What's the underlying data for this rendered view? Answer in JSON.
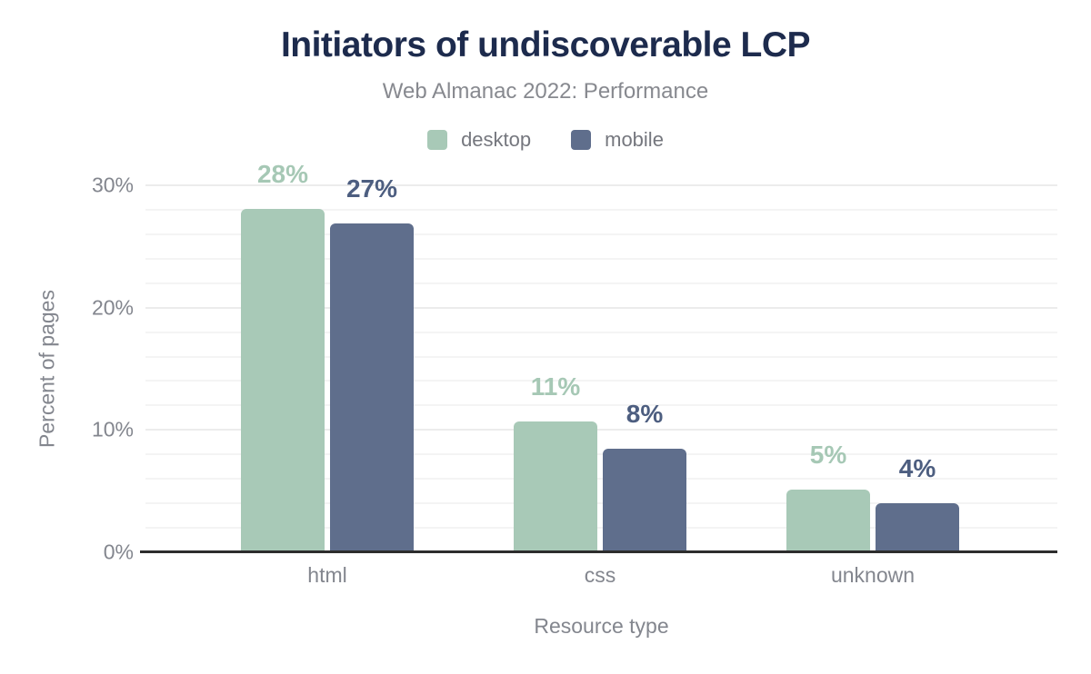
{
  "title": "Initiators of undiscoverable LCP",
  "subtitle": "Web Almanac 2022: Performance",
  "legend": {
    "items": [
      {
        "label": "desktop",
        "color": "#a8c9b7"
      },
      {
        "label": "mobile",
        "color": "#5f6e8c"
      }
    ]
  },
  "chart_data": {
    "type": "bar",
    "title": "Initiators of undiscoverable LCP",
    "subtitle": "Web Almanac 2022: Performance",
    "categories": [
      "html",
      "css",
      "unknown"
    ],
    "series": [
      {
        "name": "desktop",
        "values": [
          28,
          11,
          5
        ],
        "value_labels": [
          "28%",
          "11%",
          "5%"
        ],
        "bar_heights_pct": [
          28.1,
          10.7,
          5.1
        ],
        "color": "#a8c9b7",
        "label_color": "#a6c8b5"
      },
      {
        "name": "mobile",
        "values": [
          27,
          8,
          4
        ],
        "value_labels": [
          "27%",
          "8%",
          "4%"
        ],
        "bar_heights_pct": [
          26.9,
          8.5,
          4.0
        ],
        "color": "#5f6e8c",
        "label_color": "#4d5e80"
      }
    ],
    "xlabel": "Resource type",
    "ylabel": "Percent of pages",
    "ylim": [
      0,
      30
    ],
    "y_ticks": [
      {
        "value": 0,
        "label": "0%"
      },
      {
        "value": 10,
        "label": "10%"
      },
      {
        "value": 20,
        "label": "20%"
      },
      {
        "value": 30,
        "label": "30%"
      }
    ],
    "minor_gridline_step_pct": 2,
    "grid": true,
    "legend_position": "top",
    "colors": {
      "title": "#1d2b4d",
      "subtitle": "#87898f",
      "legend_text": "#75777e",
      "axis_text": "#83868e",
      "axis_line": "#2d2d2d",
      "minor_gridline": "#f4f4f4",
      "major_gridline": "#ececec"
    }
  }
}
